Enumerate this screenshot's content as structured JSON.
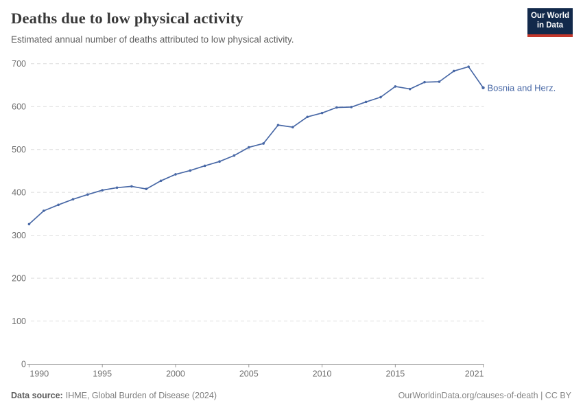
{
  "header": {
    "title": "Deaths due to low physical activity",
    "subtitle": "Estimated annual number of deaths attributed to low physical activity.",
    "logo": {
      "line1": "Our World",
      "line2": "in Data",
      "bg_color": "#12294B",
      "accent_color": "#C4372B"
    }
  },
  "chart_data": {
    "type": "line",
    "title": "Deaths due to low physical activity",
    "subtitle": "Estimated annual number of deaths attributed to low physical activity.",
    "x": [
      1990,
      1991,
      1992,
      1993,
      1994,
      1995,
      1996,
      1997,
      1998,
      1999,
      2000,
      2001,
      2002,
      2003,
      2004,
      2005,
      2006,
      2007,
      2008,
      2009,
      2010,
      2011,
      2012,
      2013,
      2014,
      2015,
      2016,
      2017,
      2018,
      2019,
      2020,
      2021
    ],
    "series": [
      {
        "name": "Bosnia and Herz.",
        "color": "#4868A6",
        "values": [
          326,
          357,
          371,
          384,
          395,
          405,
          411,
          414,
          408,
          427,
          442,
          451,
          462,
          472,
          486,
          505,
          514,
          557,
          552,
          576,
          585,
          598,
          599,
          611,
          622,
          647,
          641,
          657,
          658,
          683,
          693,
          644
        ]
      }
    ],
    "xlabel": "",
    "ylabel": "",
    "xlim": [
      1990,
      2021
    ],
    "ylim": [
      0,
      700
    ],
    "x_ticks": [
      1990,
      1995,
      2000,
      2005,
      2010,
      2015,
      2021
    ],
    "y_ticks": [
      0,
      100,
      200,
      300,
      400,
      500,
      600,
      700
    ],
    "grid": "horizontal-dashed",
    "legend_position": "end-of-line-label",
    "end_label": "Bosnia and Herz.",
    "marker": "dot"
  },
  "footer": {
    "source_label": "Data source:",
    "source_text": "IHME, Global Burden of Disease (2024)",
    "link_text": "OurWorldinData.org/causes-of-death | CC BY"
  }
}
